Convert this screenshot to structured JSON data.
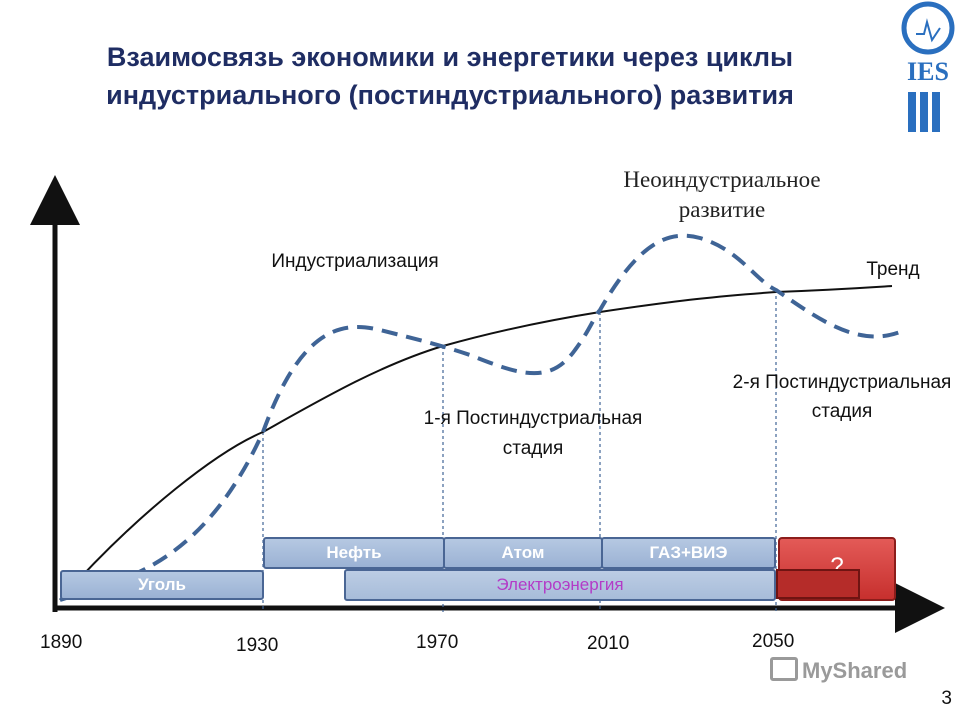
{
  "title": "Взаимосвязь экономики и энергетики через циклы индустриального (постиндустриального) развития",
  "logo": {
    "text": "IES"
  },
  "labels": {
    "industrialization": "Индустриализация",
    "neoindustrial": "Неоиндустриальное развитие",
    "trend": "Тренд",
    "stage1": "1-я Постиндустриальная стадия",
    "stage2": "2-я Постиндустриальная стадия"
  },
  "years": [
    "1890",
    "1930",
    "1970",
    "2010",
    "2050"
  ],
  "energy_bars": {
    "coal": "Уголь",
    "oil": "Нефть",
    "atom": "Атом",
    "gas_res": "ГАЗ+ВИЭ",
    "electricity": "Электроэнергия",
    "unknown": "?"
  },
  "watermark": "MyShared",
  "page_number": "3",
  "colors": {
    "title": "#1f2d63",
    "dashed_curve": "#3f6496",
    "trend": "#111111",
    "bar": "#9bb2d4",
    "unknown": "#c7302e"
  }
}
